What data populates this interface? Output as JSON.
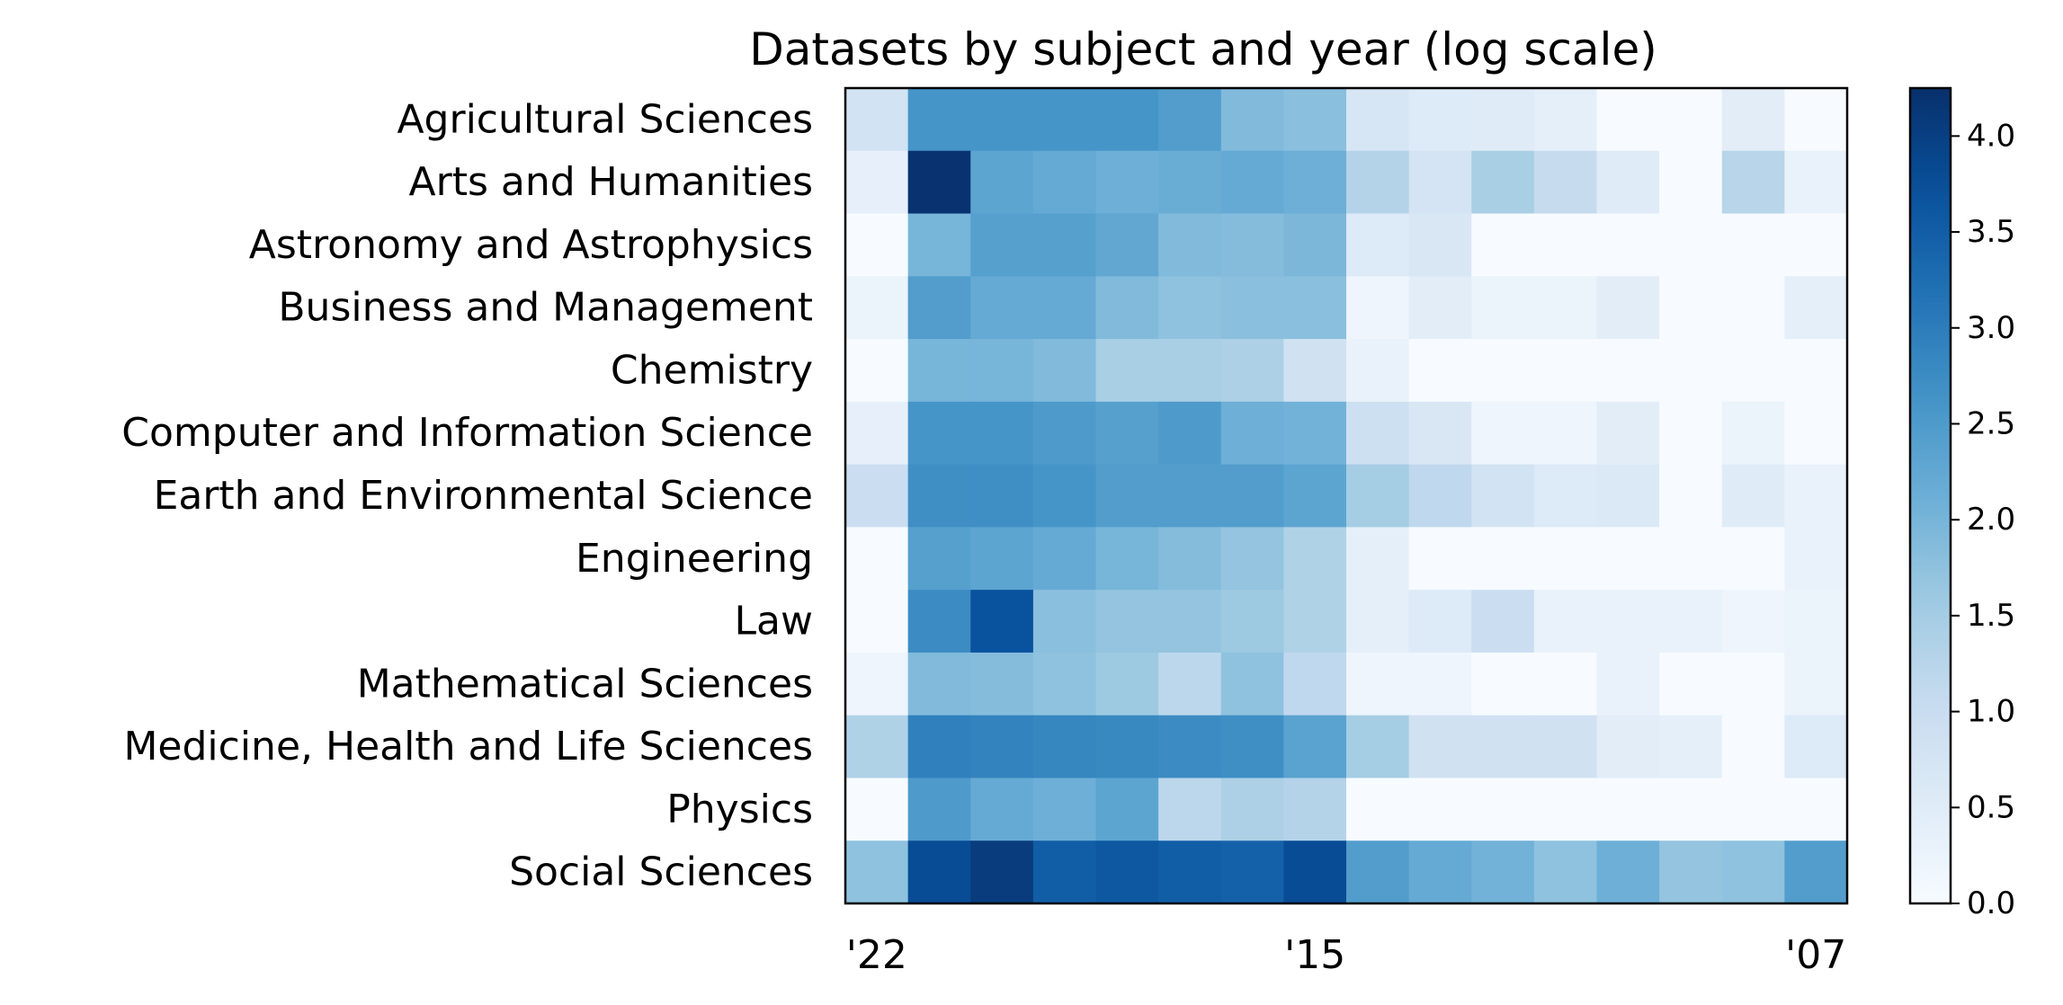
{
  "chart_data": {
    "type": "heatmap",
    "title": "Datasets by subject and year (log scale)",
    "xlabel": "",
    "ylabel": "",
    "x_tick_labels": [
      "'22",
      "'15",
      "'07"
    ],
    "x_tick_columns": [
      0,
      7,
      15
    ],
    "columns": 16,
    "categories": [
      "Agricultural Sciences",
      "Arts and Humanities",
      "Astronomy and Astrophysics",
      "Business and Management",
      "Chemistry",
      "Computer and Information Science",
      "Earth and Environmental Science",
      "Engineering",
      "Law",
      "Mathematical Sciences",
      "Medicine, Health and Life Sciences",
      "Physics",
      "Social Sciences"
    ],
    "values": [
      [
        0.8,
        2.6,
        2.6,
        2.6,
        2.6,
        2.45,
        1.9,
        1.8,
        0.7,
        0.55,
        0.5,
        0.4,
        0.0,
        0.0,
        0.45,
        0.0
      ],
      [
        0.35,
        4.2,
        2.3,
        2.2,
        2.1,
        2.15,
        2.2,
        2.1,
        1.3,
        0.75,
        1.45,
        1.05,
        0.5,
        0.0,
        1.25,
        0.3
      ],
      [
        0.0,
        2.0,
        2.4,
        2.4,
        2.25,
        1.9,
        1.85,
        1.95,
        0.55,
        0.65,
        0.0,
        0.0,
        0.0,
        0.0,
        0.0,
        0.0
      ],
      [
        0.25,
        2.45,
        2.2,
        2.2,
        1.9,
        1.75,
        1.8,
        1.8,
        0.2,
        0.45,
        0.25,
        0.25,
        0.45,
        0.0,
        0.0,
        0.4
      ],
      [
        0.0,
        2.0,
        2.0,
        1.9,
        1.45,
        1.45,
        1.4,
        0.85,
        0.3,
        0.0,
        0.0,
        0.0,
        0.0,
        0.0,
        0.0,
        0.0
      ],
      [
        0.35,
        2.6,
        2.6,
        2.5,
        2.4,
        2.5,
        2.1,
        2.05,
        0.9,
        0.65,
        0.2,
        0.2,
        0.45,
        0.0,
        0.25,
        0.0
      ],
      [
        0.95,
        2.7,
        2.7,
        2.6,
        2.45,
        2.45,
        2.45,
        2.3,
        1.5,
        1.15,
        0.8,
        0.55,
        0.6,
        0.0,
        0.5,
        0.3
      ],
      [
        0.0,
        2.4,
        2.3,
        2.2,
        2.0,
        1.85,
        1.7,
        1.35,
        0.4,
        0.0,
        0.0,
        0.0,
        0.0,
        0.0,
        0.0,
        0.3
      ],
      [
        0.0,
        2.75,
        3.7,
        1.8,
        1.7,
        1.7,
        1.6,
        1.35,
        0.4,
        0.55,
        0.95,
        0.3,
        0.3,
        0.3,
        0.2,
        0.25
      ],
      [
        0.2,
        1.9,
        1.85,
        1.75,
        1.6,
        1.2,
        1.75,
        1.15,
        0.2,
        0.2,
        0.0,
        0.0,
        0.3,
        0.0,
        0.0,
        0.25
      ],
      [
        1.35,
        2.95,
        2.9,
        2.85,
        2.8,
        2.75,
        2.7,
        2.35,
        1.5,
        0.85,
        0.85,
        0.85,
        0.45,
        0.4,
        0.0,
        0.55
      ],
      [
        0.0,
        2.5,
        2.2,
        2.1,
        2.3,
        1.2,
        1.4,
        1.3,
        0.0,
        0.0,
        0.0,
        0.0,
        0.0,
        0.0,
        0.0,
        0.0
      ],
      [
        1.75,
        3.8,
        4.05,
        3.5,
        3.6,
        3.5,
        3.45,
        3.8,
        2.45,
        2.2,
        2.05,
        1.75,
        2.1,
        1.7,
        1.75,
        2.45
      ]
    ],
    "colorbar": {
      "min": 0.0,
      "max": 4.25,
      "ticks": [
        0.0,
        0.5,
        1.0,
        1.5,
        2.0,
        2.5,
        3.0,
        3.5,
        4.0
      ],
      "tick_labels": [
        "0.0",
        "0.5",
        "1.0",
        "1.5",
        "2.0",
        "2.5",
        "3.0",
        "3.5",
        "4.0"
      ],
      "colormap": "Blues"
    },
    "grid": false,
    "legend": "colorbar-right"
  }
}
